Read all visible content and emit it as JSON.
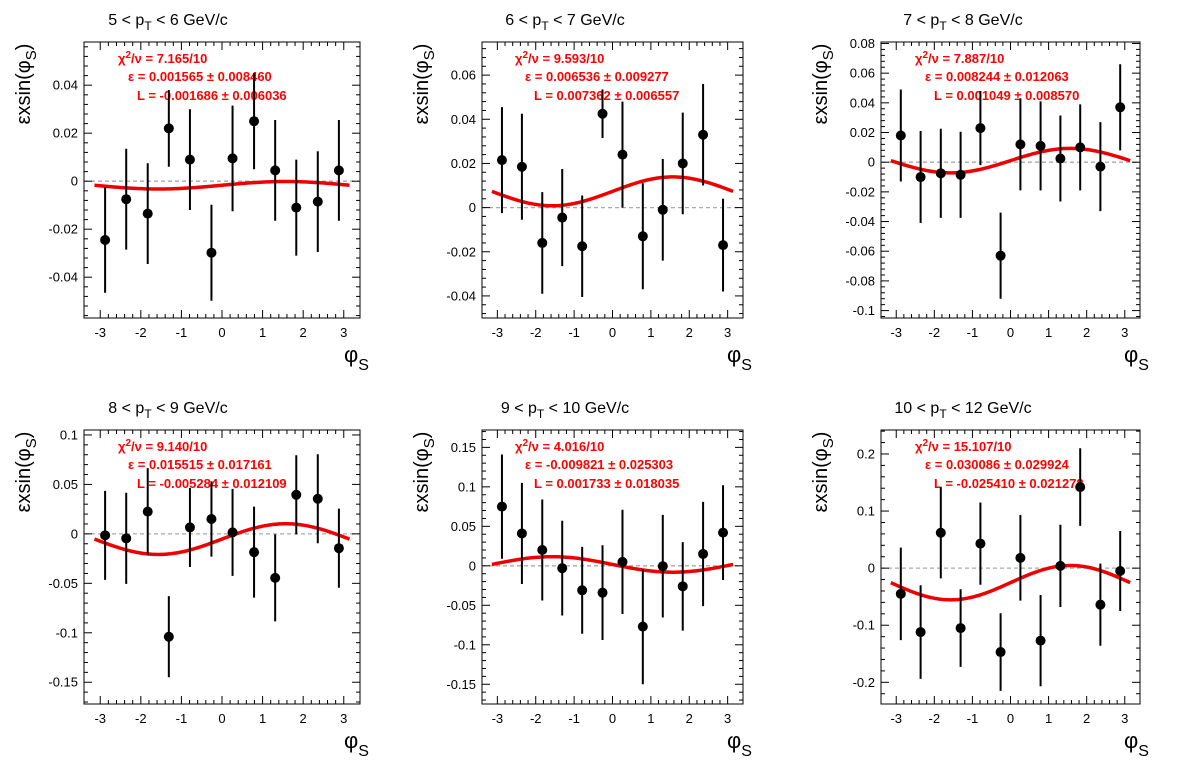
{
  "figure": {
    "colors": {
      "fit": "#ee0000",
      "points": "#000000",
      "text_red": "#ff0000",
      "zero_line": "#aaaaaa"
    }
  },
  "chart_data": [
    {
      "type": "scatter",
      "title": "5 < pT < 6 GeV/c",
      "title_parts": [
        "5 < p",
        "T",
        " < 6 GeV/c"
      ],
      "ylabel": "ε×sin(φS)",
      "ylabel_main": "εxsin(φ",
      "ylabel_sub": "S",
      "xlabel": "φS",
      "xlabel_main": "φ",
      "xlabel_sub": "S",
      "xlim": [
        -3.4,
        3.4
      ],
      "ylim": [
        -0.057,
        0.058
      ],
      "xticks": [
        -3,
        -2,
        -1,
        0,
        1,
        2,
        3
      ],
      "yticks": [
        -0.04,
        -0.02,
        0,
        0.02,
        0.04
      ],
      "ytick_labels": [
        "-0.04",
        "-0.02",
        "0",
        "0.02",
        "0.04"
      ],
      "fit_text": [
        "χ2/ν = 7.165/10",
        "ε = 0.001565 ± 0.008460",
        "L = -0.001686 ± 0.006036"
      ],
      "fit_params": {
        "eps": 0.001565,
        "L": -0.001686
      },
      "x": [
        -2.88,
        -2.36,
        -1.83,
        -1.31,
        -0.79,
        -0.26,
        0.26,
        0.79,
        1.31,
        1.83,
        2.36,
        2.88
      ],
      "y": [
        -0.0245,
        -0.0075,
        -0.0135,
        0.022,
        0.009,
        -0.0298,
        0.0095,
        0.025,
        0.0045,
        -0.011,
        -0.0085,
        0.0045
      ],
      "yerr": [
        0.022,
        0.021,
        0.021,
        0.016,
        0.021,
        0.02,
        0.022,
        0.02,
        0.021,
        0.02,
        0.021,
        0.021
      ]
    },
    {
      "type": "scatter",
      "title": "6 < pT < 7 GeV/c",
      "title_parts": [
        "6 < p",
        "T",
        " < 7 GeV/c"
      ],
      "ylabel": "ε×sin(φS)",
      "ylabel_main": "εxsin(φ",
      "ylabel_sub": "S",
      "xlabel": "φS",
      "xlabel_main": "φ",
      "xlabel_sub": "S",
      "xlim": [
        -3.4,
        3.4
      ],
      "ylim": [
        -0.05,
        0.075
      ],
      "xticks": [
        -3,
        -2,
        -1,
        0,
        1,
        2,
        3
      ],
      "yticks": [
        -0.04,
        -0.02,
        0,
        0.02,
        0.04,
        0.06
      ],
      "ytick_labels": [
        "-0.04",
        "-0.02",
        "0",
        "0.02",
        "0.04",
        "0.06"
      ],
      "fit_text": [
        "χ2/ν = 9.593/10",
        "ε = 0.006536 ± 0.009277",
        "L = 0.007362 ± 0.006557"
      ],
      "fit_params": {
        "eps": 0.006536,
        "L": 0.007362
      },
      "x": [
        -2.88,
        -2.36,
        -1.83,
        -1.31,
        -0.79,
        -0.26,
        0.26,
        0.79,
        1.31,
        1.83,
        2.36,
        2.88
      ],
      "y": [
        0.0215,
        0.0185,
        -0.016,
        -0.0045,
        -0.0175,
        0.0425,
        0.024,
        -0.013,
        -0.001,
        0.02,
        0.033,
        -0.017
      ],
      "yerr": [
        0.024,
        0.024,
        0.023,
        0.022,
        0.023,
        0.011,
        0.024,
        0.024,
        0.023,
        0.023,
        0.023,
        0.021
      ]
    },
    {
      "type": "scatter",
      "title": "7 < pT < 8 GeV/c",
      "title_parts": [
        "7 < p",
        "T",
        " < 8 GeV/c"
      ],
      "ylabel": "ε×sin(φS)",
      "ylabel_main": "εxsin(φ",
      "ylabel_sub": "S",
      "xlabel": "φS",
      "xlabel_main": "φ",
      "xlabel_sub": "S",
      "xlim": [
        -3.4,
        3.4
      ],
      "ylim": [
        -0.105,
        0.081
      ],
      "xticks": [
        -3,
        -2,
        -1,
        0,
        1,
        2,
        3
      ],
      "yticks": [
        -0.1,
        -0.08,
        -0.06,
        -0.04,
        -0.02,
        0,
        0.02,
        0.04,
        0.06,
        0.08
      ],
      "ytick_labels": [
        "-0.1",
        "-0.08",
        "-0.06",
        "-0.04",
        "-0.02",
        "0",
        "0.02",
        "0.04",
        "0.06",
        "0.08"
      ],
      "fit_text": [
        "χ2/ν = 7.887/10",
        "ε = 0.008244 ± 0.012063",
        "L = 0.001049 ± 0.008570"
      ],
      "fit_params": {
        "eps": 0.008244,
        "L": 0.001049
      },
      "x": [
        -2.88,
        -2.36,
        -1.83,
        -1.31,
        -0.79,
        -0.26,
        0.26,
        0.79,
        1.31,
        1.83,
        2.36,
        2.88
      ],
      "y": [
        0.018,
        -0.01,
        -0.0075,
        -0.0085,
        0.023,
        -0.063,
        0.012,
        0.011,
        0.0025,
        0.01,
        -0.003,
        0.037
      ],
      "yerr": [
        0.031,
        0.031,
        0.03,
        0.029,
        0.025,
        0.029,
        0.031,
        0.03,
        0.029,
        0.029,
        0.03,
        0.029
      ]
    },
    {
      "type": "scatter",
      "title": "8 < pT < 9 GeV/c",
      "title_parts": [
        "8 < p",
        "T",
        " < 9 GeV/c"
      ],
      "ylabel": "ε×sin(φS)",
      "ylabel_main": "εxsin(φ",
      "ylabel_sub": "S",
      "xlabel": "φS",
      "xlabel_main": "φ",
      "xlabel_sub": "S",
      "xlim": [
        -3.4,
        3.4
      ],
      "ylim": [
        -0.172,
        0.105
      ],
      "xticks": [
        -3,
        -2,
        -1,
        0,
        1,
        2,
        3
      ],
      "yticks": [
        -0.15,
        -0.1,
        -0.05,
        0,
        0.05,
        0.1
      ],
      "ytick_labels": [
        "-0.15",
        "-0.1",
        "-0.05",
        "0",
        "0.05",
        "0.1"
      ],
      "fit_text": [
        "χ2/ν = 9.140/10",
        "ε = 0.015515 ± 0.017161",
        "L = -0.005284 ± 0.012109"
      ],
      "fit_params": {
        "eps": 0.015515,
        "L": -0.005284
      },
      "x": [
        -2.88,
        -2.36,
        -1.83,
        -1.31,
        -0.79,
        -0.26,
        0.26,
        0.79,
        1.31,
        1.83,
        2.36,
        2.88
      ],
      "y": [
        -0.0015,
        -0.0045,
        0.0225,
        -0.104,
        0.0065,
        0.015,
        0.0015,
        -0.0185,
        -0.0445,
        0.0395,
        0.0355,
        -0.0145
      ],
      "yerr": [
        0.045,
        0.046,
        0.044,
        0.041,
        0.04,
        0.038,
        0.044,
        0.046,
        0.044,
        0.04,
        0.045,
        0.04
      ]
    },
    {
      "type": "scatter",
      "title": "9 < pT < 10 GeV/c",
      "title_parts": [
        "9 < p",
        "T",
        " < 10 GeV/c"
      ],
      "ylabel": "ε×sin(φS)",
      "ylabel_main": "εxsin(φ",
      "ylabel_sub": "S",
      "xlabel": "φS",
      "xlabel_main": "φ",
      "xlabel_sub": "S",
      "xlim": [
        -3.4,
        3.4
      ],
      "ylim": [
        -0.175,
        0.172
      ],
      "xticks": [
        -3,
        -2,
        -1,
        0,
        1,
        2,
        3
      ],
      "yticks": [
        -0.15,
        -0.1,
        -0.05,
        0,
        0.05,
        0.1,
        0.15
      ],
      "ytick_labels": [
        "-0.15",
        "-0.1",
        "-0.05",
        "0",
        "0.05",
        "0.1",
        "0.15"
      ],
      "fit_text": [
        "χ2/ν = 4.016/10",
        "ε = -0.009821 ± 0.025303",
        "L = 0.001733 ± 0.018035"
      ],
      "fit_params": {
        "eps": -0.009821,
        "L": 0.001733
      },
      "x": [
        -2.88,
        -2.36,
        -1.83,
        -1.31,
        -0.79,
        -0.26,
        0.26,
        0.79,
        1.31,
        1.83,
        2.36,
        2.88
      ],
      "y": [
        0.075,
        0.041,
        0.02,
        -0.003,
        -0.031,
        -0.034,
        0.005,
        -0.077,
        -0.0005,
        -0.026,
        0.015,
        0.042
      ],
      "yerr": [
        0.066,
        0.064,
        0.064,
        0.06,
        0.055,
        0.06,
        0.066,
        0.073,
        0.065,
        0.056,
        0.066,
        0.06
      ]
    },
    {
      "type": "scatter",
      "title": "10 < pT < 12 GeV/c",
      "title_parts": [
        "10 < p",
        "T",
        " < 12 GeV/c"
      ],
      "ylabel": "ε×sin(φS)",
      "ylabel_main": "εxsin(φ",
      "ylabel_sub": "S",
      "xlabel": "φS",
      "xlabel_main": "φ",
      "xlabel_sub": "S",
      "xlim": [
        -3.4,
        3.4
      ],
      "ylim": [
        -0.238,
        0.242
      ],
      "xticks": [
        -3,
        -2,
        -1,
        0,
        1,
        2,
        3
      ],
      "yticks": [
        -0.2,
        -0.1,
        0,
        0.1,
        0.2
      ],
      "ytick_labels": [
        "-0.2",
        "-0.1",
        "0",
        "0.1",
        "0.2"
      ],
      "fit_text": [
        "χ2/ν = 15.107/10",
        "ε = 0.030086 ± 0.029924",
        "L = -0.025410 ± 0.021278"
      ],
      "fit_params": {
        "eps": 0.030086,
        "L": -0.02541
      },
      "x": [
        -2.88,
        -2.36,
        -1.83,
        -1.31,
        -0.79,
        -0.26,
        0.26,
        0.79,
        1.31,
        1.83,
        2.36,
        2.88
      ],
      "y": [
        -0.045,
        -0.112,
        0.062,
        -0.105,
        0.043,
        -0.147,
        0.018,
        -0.127,
        0.004,
        0.142,
        -0.064,
        -0.005
      ],
      "yerr": [
        0.081,
        0.082,
        0.08,
        0.068,
        0.072,
        0.068,
        0.075,
        0.08,
        0.072,
        0.068,
        0.072,
        0.07
      ]
    }
  ]
}
